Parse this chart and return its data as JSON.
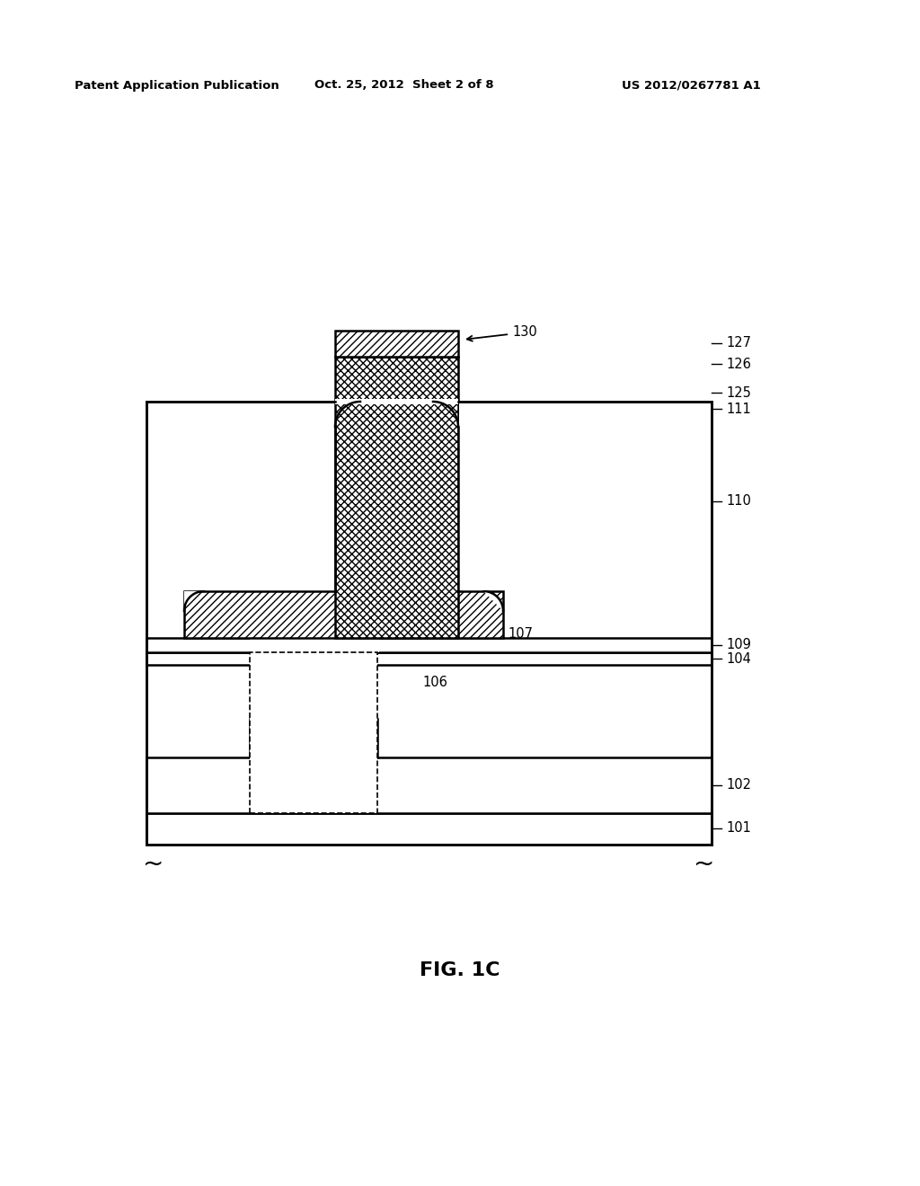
{
  "fig_label": "FIG. 1C",
  "patent_header_left": "Patent Application Publication",
  "patent_header_center": "Oct. 25, 2012  Sheet 2 of 8",
  "patent_header_right": "US 2012/0267781 A1",
  "bg_color": "#ffffff",
  "line_color": "#000000"
}
